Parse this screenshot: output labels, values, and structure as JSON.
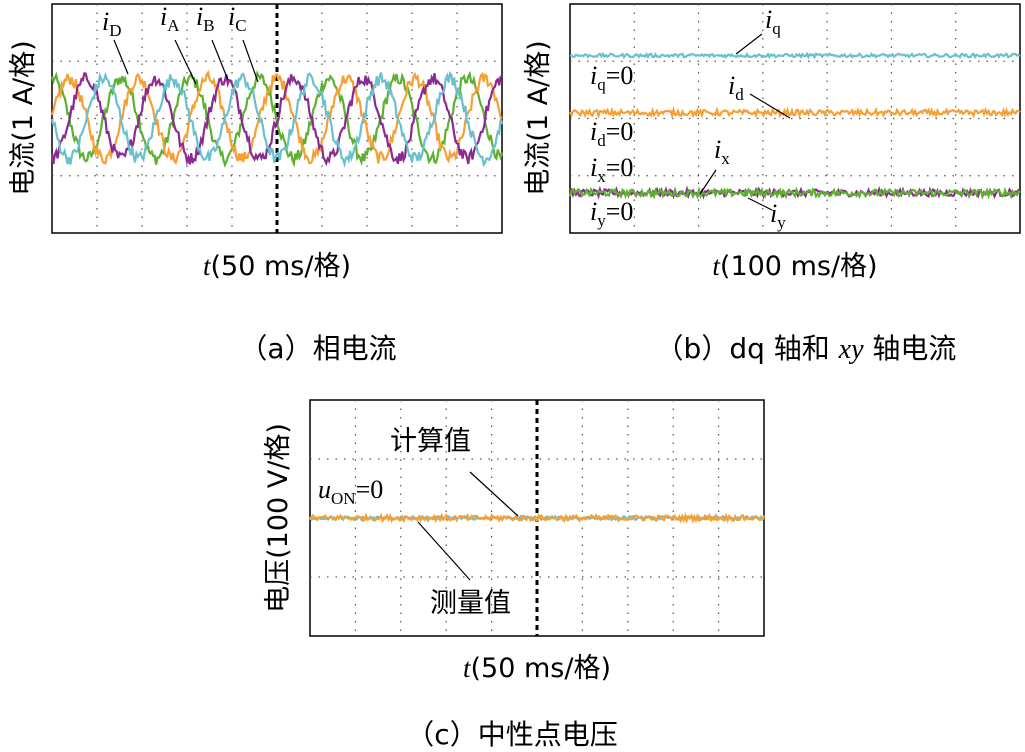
{
  "chart_data": [
    {
      "panel": "a",
      "type": "line",
      "caption": "（a）相电流",
      "ylabel": "电流(1 A/格)",
      "xlabel_var": "t",
      "xlabel_unit": "(50 ms/格)",
      "grid": true,
      "divisions": {
        "x": 10,
        "y": 4
      },
      "x_range_ms": [
        0,
        500
      ],
      "y_range_A": [
        -2,
        2
      ],
      "series": [
        {
          "name": "iA",
          "var": "i",
          "sub": "A",
          "color": "#f5a035",
          "amplitude_A": 0.7,
          "frequency_Hz": 13,
          "phase_deg": 0
        },
        {
          "name": "iB",
          "var": "i",
          "sub": "B",
          "color": "#8a2b91",
          "amplitude_A": 0.7,
          "frequency_Hz": 13,
          "phase_deg": -90
        },
        {
          "name": "iC",
          "var": "i",
          "sub": "C",
          "color": "#6bc0d0",
          "amplitude_A": 0.7,
          "frequency_Hz": 13,
          "phase_deg": -180
        },
        {
          "name": "iD",
          "var": "i",
          "sub": "D",
          "color": "#5db030",
          "amplitude_A": 0.7,
          "frequency_Hz": 13,
          "phase_deg": -270
        }
      ]
    },
    {
      "panel": "b",
      "type": "line",
      "caption": "（b）dq 轴和 xy 轴电流",
      "caption_parts": [
        "（b）dq 轴和 ",
        "xy",
        " 轴电流"
      ],
      "ylabel": "电流(1 A/格)",
      "xlabel_var": "t",
      "xlabel_unit": "(100 ms/格)",
      "grid": true,
      "divisions": {
        "x": 7,
        "y": 4
      },
      "y_range_A": [
        -0.7,
        3.3
      ],
      "series": [
        {
          "name": "iq",
          "var": "i",
          "sub": "q",
          "color": "#6bc0d0",
          "level_A": 2.4
        },
        {
          "name": "id",
          "var": "i",
          "sub": "d",
          "color": "#f5a035",
          "level_A": 1.4
        },
        {
          "name": "ix",
          "var": "i",
          "sub": "x",
          "color": "#5db030",
          "level_A": 0.0
        },
        {
          "name": "iy",
          "var": "i",
          "sub": "y",
          "color": "#8a2b91",
          "level_A": 0.0
        }
      ],
      "zero_markers": [
        {
          "var": "i",
          "sub": "q",
          "text": "=0"
        },
        {
          "var": "i",
          "sub": "d",
          "text": "=0"
        },
        {
          "var": "i",
          "sub": "x",
          "text": "=0"
        },
        {
          "var": "i",
          "sub": "y",
          "text": "=0"
        }
      ]
    },
    {
      "panel": "c",
      "type": "line",
      "caption": "（c）中性点电压",
      "ylabel": "电压(100 V/格)",
      "xlabel_var": "t",
      "xlabel_unit": "(50 ms/格)",
      "grid": true,
      "divisions": {
        "x": 10,
        "y": 4
      },
      "y_range_V": [
        -200,
        200
      ],
      "series": [
        {
          "name": "计算值",
          "color": "#6bc0d0",
          "level_V": 0
        },
        {
          "name": "测量值",
          "color": "#f5a035",
          "level_V": 0
        }
      ],
      "zero_marker": {
        "var": "u",
        "sub": "ON",
        "text": "=0"
      }
    }
  ],
  "colors": {
    "orange": "#f5a035",
    "purple": "#8a2b91",
    "cyan": "#6bc0d0",
    "green": "#5db030",
    "grid": "#555555"
  }
}
